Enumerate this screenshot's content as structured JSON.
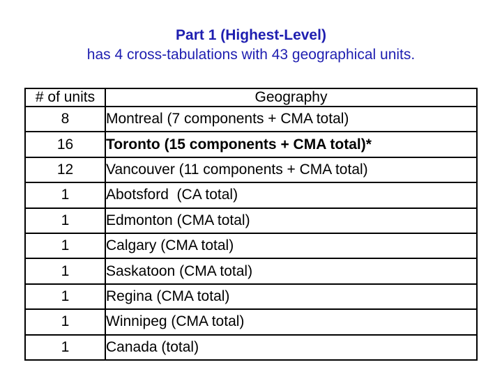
{
  "slide": {
    "title_line1": "Part 1 (Highest-Level)",
    "title_line2": "has 4 cross-tabulations with 43 geographical units.",
    "title_color": "#1E1EB0",
    "background_color": "#ffffff",
    "border_color": "#000000"
  },
  "table": {
    "headers": [
      "# of units",
      "Geography"
    ],
    "rows": [
      {
        "units": "8",
        "geography": "Montreal (7 components + CMA total)",
        "bold": false
      },
      {
        "units": "16",
        "geography": "Toronto (15 components + CMA total)*",
        "bold": true
      },
      {
        "units": "12",
        "geography": "Vancouver (11 components + CMA total)",
        "bold": false
      },
      {
        "units": "1",
        "geography": "Abotsford  (CA total)",
        "bold": false
      },
      {
        "units": "1",
        "geography": "Edmonton (CMA total)",
        "bold": false
      },
      {
        "units": "1",
        "geography": "Calgary (CMA total)",
        "bold": false
      },
      {
        "units": "1",
        "geography": "Saskatoon (CMA total)",
        "bold": false
      },
      {
        "units": "1",
        "geography": "Regina (CMA total)",
        "bold": false
      },
      {
        "units": "1",
        "geography": "Winnipeg (CMA total)",
        "bold": false
      },
      {
        "units": "1",
        "geography": "Canada (total)",
        "bold": false
      }
    ]
  }
}
